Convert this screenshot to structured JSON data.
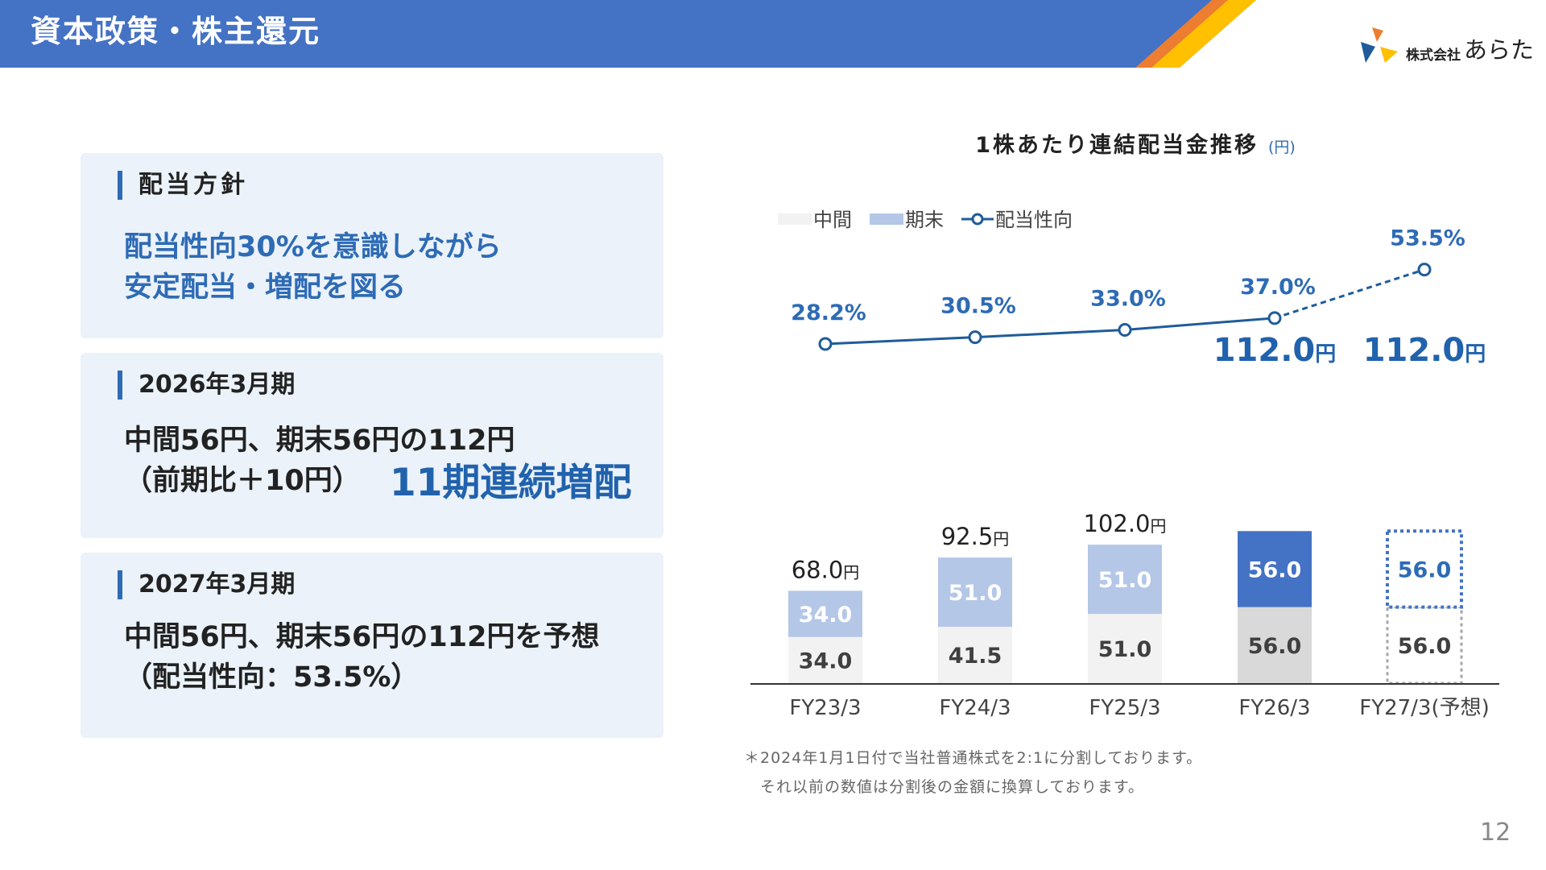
{
  "header": {
    "title": "資本政策・株主還元"
  },
  "logo": {
    "prefix": "株式会社",
    "name": "あらた"
  },
  "policy": {
    "heading": "配当方針",
    "line1": "配当性向30%を意識しながら",
    "line2": "安定配当・増配を図る"
  },
  "fy2026": {
    "heading": "2026年3月期",
    "line1": "中間56円、期末56円の112円",
    "line2": "（前期比＋10円）",
    "highlight": "11期連続増配"
  },
  "fy2027": {
    "heading": "2027年3月期",
    "line1": "中間56円、期末56円の112円を予想",
    "line2": "（配当性向：53.5%）"
  },
  "chart_title": {
    "main": "1株あたり連結配当金推移",
    "unit": "(円)"
  },
  "colors": {
    "interim": "#F2F2F2",
    "interim_fy26": "#D9D9D9",
    "year_end": "#B4C7E7",
    "year_end_fy26": "#4472C4",
    "payout_line": "#1F5C99",
    "accent_text": "#2E6BB5",
    "header": "#4472C4"
  },
  "chart_data": {
    "type": "bar",
    "stacked": true,
    "categories": [
      "FY23/3",
      "FY24/3",
      "FY25/3",
      "FY26/3",
      "FY27/3(予想)"
    ],
    "series": [
      {
        "name": "中間",
        "values": [
          34.0,
          41.5,
          51.0,
          56.0,
          56.0
        ]
      },
      {
        "name": "期末",
        "values": [
          34.0,
          51.0,
          51.0,
          56.0,
          56.0
        ]
      }
    ],
    "series_labels": {
      "interim": [
        "34.0",
        "41.5",
        "51.0",
        "56.0",
        "56.0"
      ],
      "year_end": [
        "34.0",
        "51.0",
        "51.0",
        "56.0",
        "56.0"
      ]
    },
    "totals": [
      68.0,
      92.5,
      102.0,
      112.0,
      112.0
    ],
    "total_labels": [
      "68.0",
      "92.5",
      "102.0",
      "112.0",
      "112.0"
    ],
    "total_unit": "円",
    "payout_ratio": {
      "name": "配当性向",
      "values": [
        28.2,
        30.5,
        33.0,
        37.0,
        53.5
      ],
      "labels": [
        "28.2%",
        "30.5%",
        "33.0%",
        "37.0%",
        "53.5%"
      ]
    },
    "forecast_index": 4,
    "legend": {
      "placement": "top-left",
      "items": [
        "中間",
        "期末",
        "配当性向"
      ]
    }
  },
  "footnote": {
    "line1": "＊2024年1月1日付で当社普通株式を2:1に分割しております。",
    "line2": "それ以前の数値は分割後の金額に換算しております。"
  },
  "page_number": "12"
}
